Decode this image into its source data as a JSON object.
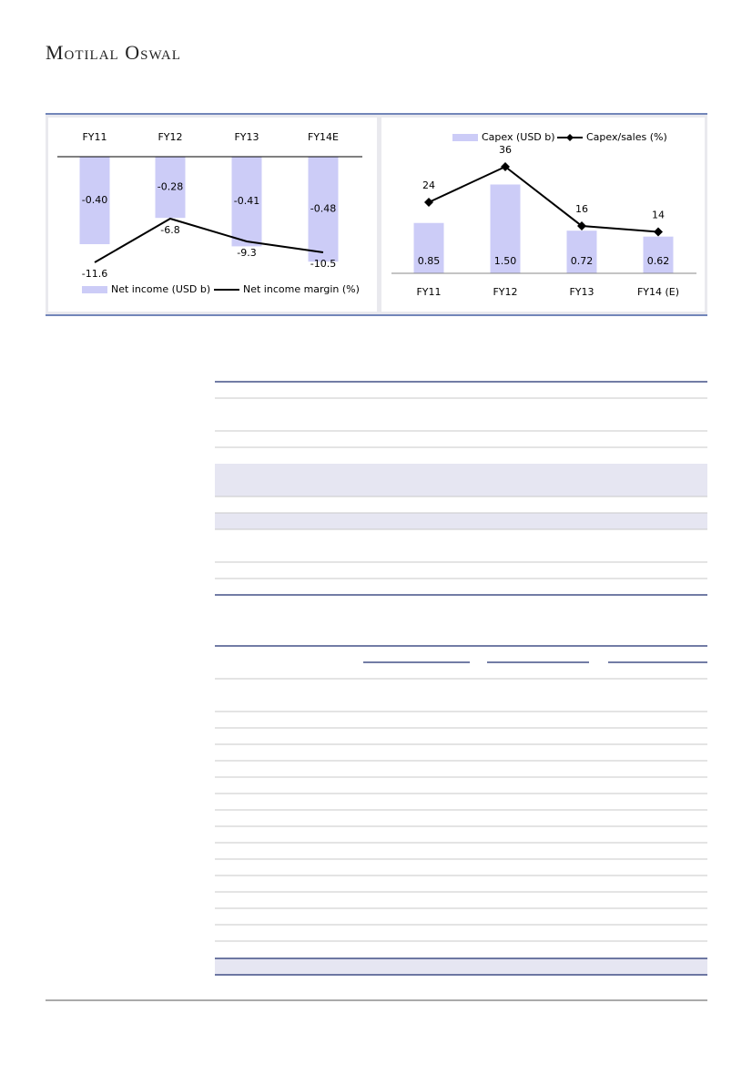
{
  "header": {
    "brand": "Motilal Oswal"
  },
  "chart_data": [
    {
      "type": "bar_line",
      "categories": [
        "FY11",
        "FY12",
        "FY13",
        "FY14E"
      ],
      "series": [
        {
          "name": "Net income (USD b)",
          "color": "#ccccf7",
          "type": "bar",
          "values": [
            -0.4,
            -0.28,
            -0.41,
            -0.48
          ],
          "value_labels": [
            "-0.40",
            "-0.28",
            "-0.41",
            "-0.48"
          ]
        },
        {
          "name": "Net income margin (%)",
          "color": "#000000",
          "type": "line",
          "axis": "y2",
          "values": [
            -11.6,
            -6.8,
            -9.3,
            -10.5
          ]
        }
      ],
      "ylim": [
        -0.5,
        0
      ],
      "y2lim": [
        -12,
        0
      ]
    },
    {
      "type": "bar_line",
      "categories": [
        "FY11",
        "FY12",
        "FY13",
        "FY14 (E)"
      ],
      "series": [
        {
          "name": "Capex (USD b)",
          "color": "#ccccf7",
          "type": "bar",
          "values": [
            0.85,
            1.5,
            0.72,
            0.62
          ],
          "value_labels": [
            "0.85",
            "1.50",
            "0.72",
            "0.62"
          ]
        },
        {
          "name": "Capex/sales (%)",
          "color": "#000000",
          "type": "line",
          "axis": "y2",
          "marker": "diamond",
          "values": [
            24,
            36,
            16,
            14
          ]
        }
      ],
      "ylim": [
        0,
        2
      ],
      "y2lim": [
        0,
        40
      ]
    }
  ]
}
